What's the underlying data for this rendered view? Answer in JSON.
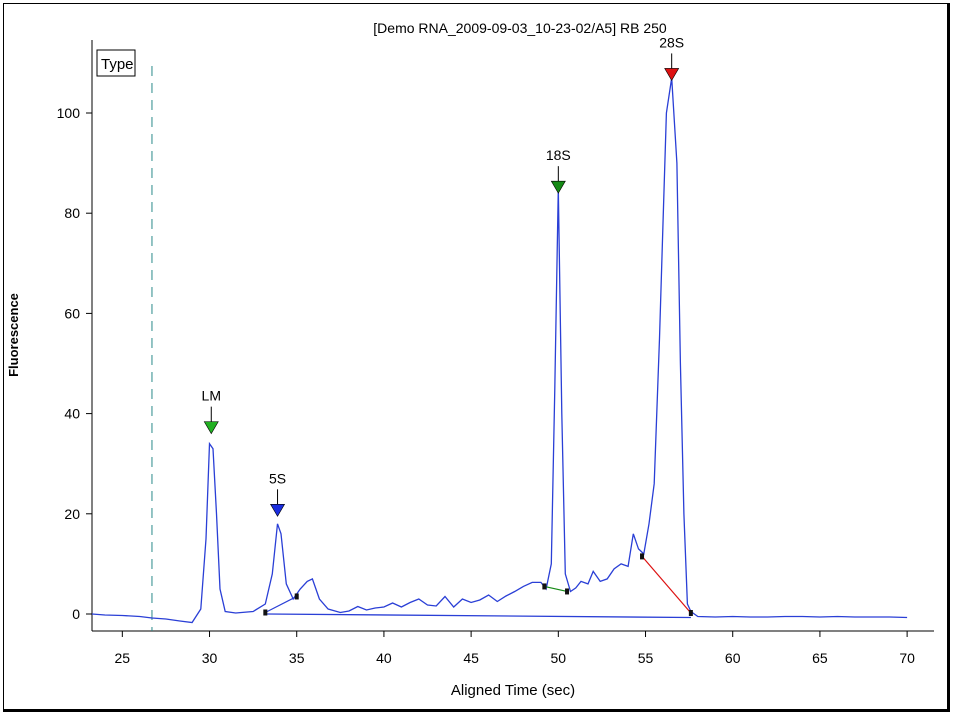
{
  "chart_data": {
    "type": "line",
    "title": "[Demo RNA_2009-09-03_10-23-02/A5] RB 250",
    "xlabel": "Aligned Time (sec)",
    "ylabel": "Fluorescence",
    "legend_text": "Type",
    "xlim": [
      22,
      70
    ],
    "ylim": [
      -4,
      112
    ],
    "xticks": [
      25,
      30,
      35,
      40,
      45,
      50,
      55,
      60,
      65,
      70
    ],
    "yticks": [
      0,
      20,
      40,
      60,
      80,
      100
    ],
    "grid": false,
    "marker_line_x": 26.7,
    "series": [
      {
        "color": "#2a3fd6",
        "x": [
          22,
          23,
          24,
          25,
          26,
          26.7,
          27.5,
          28.3,
          29,
          29.5,
          29.8,
          30.0,
          30.2,
          30.4,
          30.6,
          30.9,
          31.5,
          32.5,
          33.2,
          33.6,
          33.9,
          34.1,
          34.4,
          34.8,
          35.2,
          35.6,
          35.9,
          36.3,
          36.8,
          37.5,
          38,
          38.5,
          39,
          39.5,
          40,
          40.5,
          41,
          41.5,
          42,
          42.5,
          43,
          43.5,
          44,
          44.5,
          45,
          45.5,
          46,
          46.5,
          47,
          47.5,
          48,
          48.5,
          49,
          49.3,
          49.6,
          49.8,
          50.0,
          50.2,
          50.4,
          50.7,
          51,
          51.3,
          51.7,
          52,
          52.4,
          52.8,
          53.2,
          53.6,
          54,
          54.3,
          54.6,
          54.9,
          55.2,
          55.5,
          55.8,
          56.0,
          56.2,
          56.5,
          56.8,
          57.0,
          57.2,
          57.4,
          57.6,
          58,
          59,
          60,
          61,
          62,
          63,
          64,
          65,
          66,
          67,
          68,
          69,
          70
        ],
        "y": [
          0,
          0,
          -0.2,
          -0.3,
          -0.5,
          -0.8,
          -1,
          -1.4,
          -1.7,
          1,
          15,
          34,
          33,
          20,
          5,
          0.5,
          0.2,
          0.5,
          2,
          8,
          18,
          16,
          6,
          3,
          5,
          6.5,
          7,
          3,
          1,
          0.3,
          0.6,
          1.5,
          0.8,
          1.2,
          1.4,
          2.2,
          1.4,
          2.3,
          3,
          1.8,
          1.6,
          3.5,
          1.4,
          3,
          2.3,
          2.8,
          3.8,
          2.5,
          3.6,
          4.5,
          5.5,
          6.3,
          6.3,
          5,
          10,
          45,
          85,
          40,
          8,
          4.5,
          5.2,
          6.5,
          6,
          8.5,
          6.5,
          7,
          9,
          10,
          9.5,
          16,
          13,
          12,
          18,
          26,
          55,
          78,
          100,
          107,
          90,
          50,
          20,
          2,
          0.5,
          -0.5,
          -0.6,
          -0.5,
          -0.6,
          -0.6,
          -0.5,
          -0.5,
          -0.6,
          -0.5,
          -0.6,
          -0.6,
          -0.6,
          -0.7
        ]
      },
      {
        "color": "#2a3fd6",
        "x": [
          33.3,
          57.6
        ],
        "y": [
          0,
          -0.7
        ]
      }
    ],
    "peaks": [
      {
        "label": "LM",
        "x": 30.1,
        "y": 37,
        "color": "#22b022"
      },
      {
        "label": "5S",
        "x": 33.9,
        "y": 20.5,
        "color": "#1a2de0"
      },
      {
        "label": "18S",
        "x": 50.0,
        "y": 85,
        "color": "#158a15"
      },
      {
        "label": "28S",
        "x": 56.5,
        "y": 107.5,
        "color": "#dd1111"
      }
    ],
    "baselines": [
      {
        "x": [
          33.2,
          35.0
        ],
        "y": [
          0.3,
          3.5
        ],
        "color": "#2a3fd6"
      },
      {
        "x": [
          49.2,
          50.5
        ],
        "y": [
          5.5,
          4.5
        ],
        "color": "#158a15"
      },
      {
        "x": [
          54.8,
          57.6
        ],
        "y": [
          11.5,
          0.2
        ],
        "color": "#dd1111"
      }
    ]
  }
}
